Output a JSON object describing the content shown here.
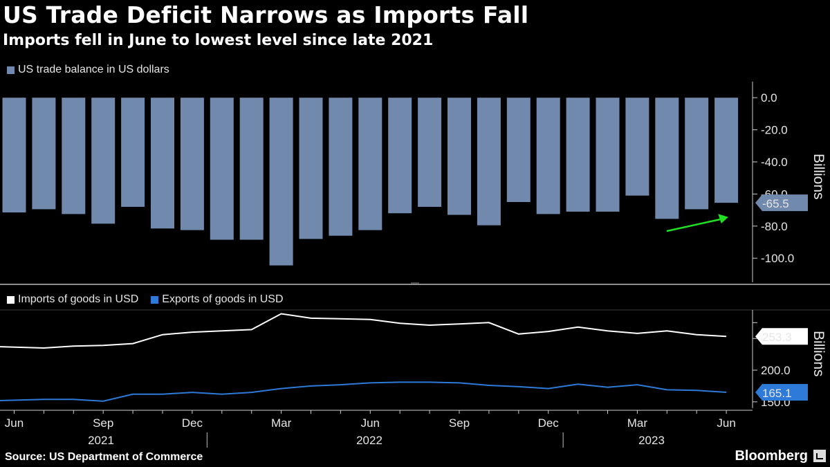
{
  "header": {
    "title": "US Trade Deficit Narrows as Imports Fall",
    "subtitle": "Imports fell in June to lowest level since late 2021"
  },
  "footer": {
    "source": "Source: US Department of Commerce",
    "brand": "Bloomberg"
  },
  "colors": {
    "balance": "#7189ad",
    "imports": "#ffffff",
    "exports": "#2e7ad8",
    "arrow": "#22e022"
  },
  "chart_data": [
    {
      "type": "bar",
      "legend": [
        "US trade balance in US dollars"
      ],
      "ylabel": "Billions",
      "ylim": [
        -115,
        10
      ],
      "yticks": [
        "0.0",
        "-20.0",
        "-40.0",
        "-60.0",
        "-80.0",
        "-100.0"
      ],
      "x": [
        "2021-06",
        "2021-07",
        "2021-08",
        "2021-09",
        "2021-10",
        "2021-11",
        "2021-12",
        "2022-01",
        "2022-02",
        "2022-03",
        "2022-04",
        "2022-05",
        "2022-06",
        "2022-07",
        "2022-08",
        "2022-09",
        "2022-10",
        "2022-11",
        "2022-12",
        "2023-01",
        "2023-02",
        "2023-03",
        "2023-04",
        "2023-05",
        "2023-06"
      ],
      "series": [
        {
          "name": "US trade balance in US dollars",
          "values": [
            -71.5,
            -69.5,
            -72.5,
            -78.5,
            -68,
            -81.5,
            -82.5,
            -88.5,
            -88.5,
            -104.5,
            -88,
            -86,
            -82.5,
            -72,
            -68,
            -73,
            -79.5,
            -65,
            -72.5,
            -71,
            -71,
            -61,
            -75.5,
            -69.5,
            -65.5
          ]
        }
      ],
      "last_value_label": "-65.5"
    },
    {
      "type": "line",
      "legend": [
        "Imports of goods in USD",
        "Exports of goods in USD"
      ],
      "ylabel": "Billions",
      "ylim": [
        140,
        295
      ],
      "yticks": [
        "150.0",
        "200.0"
      ],
      "x": [
        "2021-06",
        "2021-07",
        "2021-08",
        "2021-09",
        "2021-10",
        "2021-11",
        "2021-12",
        "2022-01",
        "2022-02",
        "2022-03",
        "2022-04",
        "2022-05",
        "2022-06",
        "2022-07",
        "2022-08",
        "2022-09",
        "2022-10",
        "2022-11",
        "2022-12",
        "2023-01",
        "2023-02",
        "2023-03",
        "2023-04",
        "2023-05",
        "2023-06"
      ],
      "series": [
        {
          "name": "Imports of goods in USD",
          "values": [
            237,
            235,
            238,
            239,
            242,
            256,
            260,
            262,
            264,
            289,
            282,
            281,
            280,
            274,
            271,
            273,
            275,
            257,
            261,
            268,
            262,
            258,
            262,
            256,
            253.3
          ]
        },
        {
          "name": "Exports of goods in USD",
          "values": [
            152,
            154,
            154,
            151,
            162,
            162,
            165,
            162,
            165,
            171,
            175,
            177,
            180,
            181,
            181,
            180,
            176,
            174,
            171,
            178,
            173,
            177,
            169,
            168,
            165.1
          ]
        }
      ],
      "last_value_labels": [
        "253.3",
        "165.1"
      ]
    }
  ],
  "x_axis": {
    "month_labels": [
      {
        "index": 0,
        "label": "Jun"
      },
      {
        "index": 3,
        "label": "Sep"
      },
      {
        "index": 6,
        "label": "Dec"
      },
      {
        "index": 9,
        "label": "Mar"
      },
      {
        "index": 12,
        "label": "Jun"
      },
      {
        "index": 15,
        "label": "Sep"
      },
      {
        "index": 18,
        "label": "Dec"
      },
      {
        "index": 21,
        "label": "Mar"
      },
      {
        "index": 24,
        "label": "Jun"
      }
    ],
    "year_labels": [
      "2021",
      "2022",
      "2023"
    ]
  }
}
